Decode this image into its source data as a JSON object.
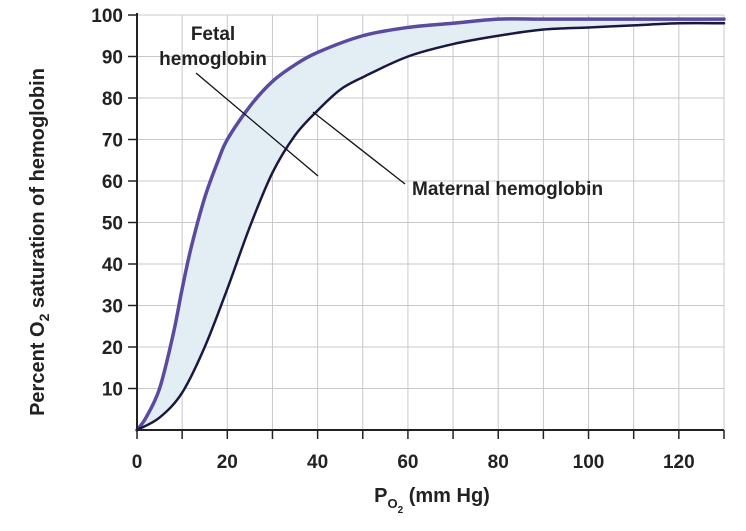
{
  "chart_data": {
    "type": "line",
    "title": "",
    "ylabel": {
      "prefix": "Percent O",
      "sub": "2",
      "suffix": " saturation of hemoglobin"
    },
    "xlabel": {
      "base": "P",
      "sub_base": "O",
      "sub_sub": "2",
      "suffix": " (mm Hg)"
    },
    "xlim": [
      0,
      130
    ],
    "ylim": [
      0,
      100
    ],
    "x_ticks": [
      0,
      20,
      40,
      60,
      80,
      100,
      120
    ],
    "x_tick_labels": [
      "0",
      "20",
      "40",
      "60",
      "80",
      "100",
      "120"
    ],
    "y_ticks": [
      10,
      20,
      30,
      40,
      50,
      60,
      70,
      80,
      90,
      100
    ],
    "y_tick_labels": [
      "10",
      "20",
      "30",
      "40",
      "50",
      "60",
      "70",
      "80",
      "90",
      "100"
    ],
    "grid": true,
    "band_fill": "shaded region between the two curves",
    "series": [
      {
        "name": "Fetal hemoglobin",
        "label_lines": [
          "Fetal",
          "hemoglobin"
        ],
        "color": "#5a4aa0",
        "x": [
          0,
          2,
          5,
          8,
          10,
          12,
          15,
          18,
          20,
          25,
          30,
          35,
          40,
          50,
          60,
          70,
          80,
          90,
          100,
          110,
          120,
          130
        ],
        "y": [
          0,
          3,
          10,
          23,
          34,
          44,
          56,
          65,
          70,
          78,
          84,
          88,
          91,
          95,
          97,
          98,
          99,
          99,
          99,
          99,
          99,
          99
        ]
      },
      {
        "name": "Maternal hemoglobin",
        "label_lines": [
          "Maternal hemoglobin"
        ],
        "color": "#1a1840",
        "x": [
          0,
          5,
          10,
          15,
          20,
          25,
          30,
          35,
          40,
          45,
          50,
          60,
          70,
          80,
          90,
          100,
          110,
          120,
          130
        ],
        "y": [
          0,
          3,
          9,
          20,
          34,
          49,
          62,
          71,
          77,
          82,
          85,
          90,
          93,
          95,
          96.5,
          97,
          97.5,
          98,
          98
        ]
      }
    ],
    "colors": {
      "band": "#e3eef4",
      "grid": "#c8c8c8",
      "axis": "#222222"
    }
  }
}
